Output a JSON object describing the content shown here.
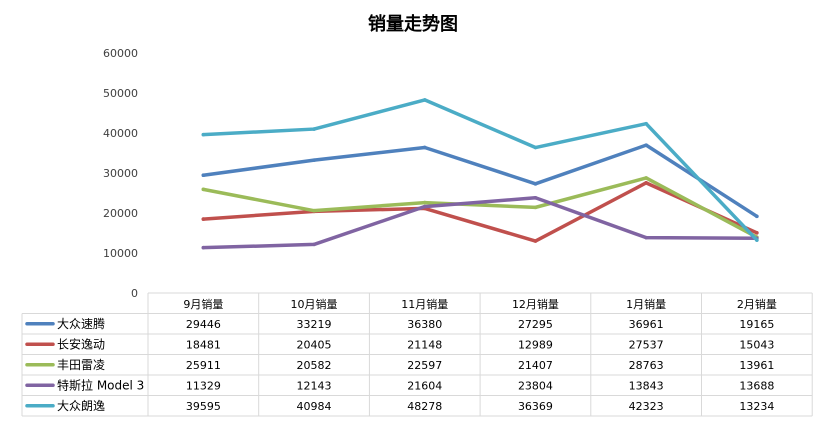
{
  "chart_data": {
    "type": "line",
    "title": "销量走势图",
    "categories": [
      "9月销量",
      "10月销量",
      "11月销量",
      "12月销量",
      "1月销量",
      "2月销量"
    ],
    "y_ticks": [
      "0",
      "10000",
      "20000",
      "30000",
      "40000",
      "50000",
      "60000"
    ],
    "ylim": [
      0,
      60000
    ],
    "grid": false,
    "legend": "data-table-below",
    "series": [
      {
        "name": "大众速腾",
        "color": "#4f81bd",
        "values": [
          29446,
          33219,
          36380,
          27295,
          36961,
          19165
        ]
      },
      {
        "name": "长安逸动",
        "color": "#c0504d",
        "values": [
          18481,
          20405,
          21148,
          12989,
          27537,
          15043
        ]
      },
      {
        "name": "丰田雷凌",
        "color": "#9bbb59",
        "values": [
          25911,
          20582,
          22597,
          21407,
          28763,
          13961
        ]
      },
      {
        "name": "特斯拉 Model 3",
        "color": "#8064a2",
        "values": [
          11329,
          12143,
          21604,
          23804,
          13843,
          13688
        ]
      },
      {
        "name": "大众朗逸",
        "color": "#4bacc6",
        "values": [
          39595,
          40984,
          48278,
          36369,
          42323,
          13234
        ]
      }
    ]
  }
}
